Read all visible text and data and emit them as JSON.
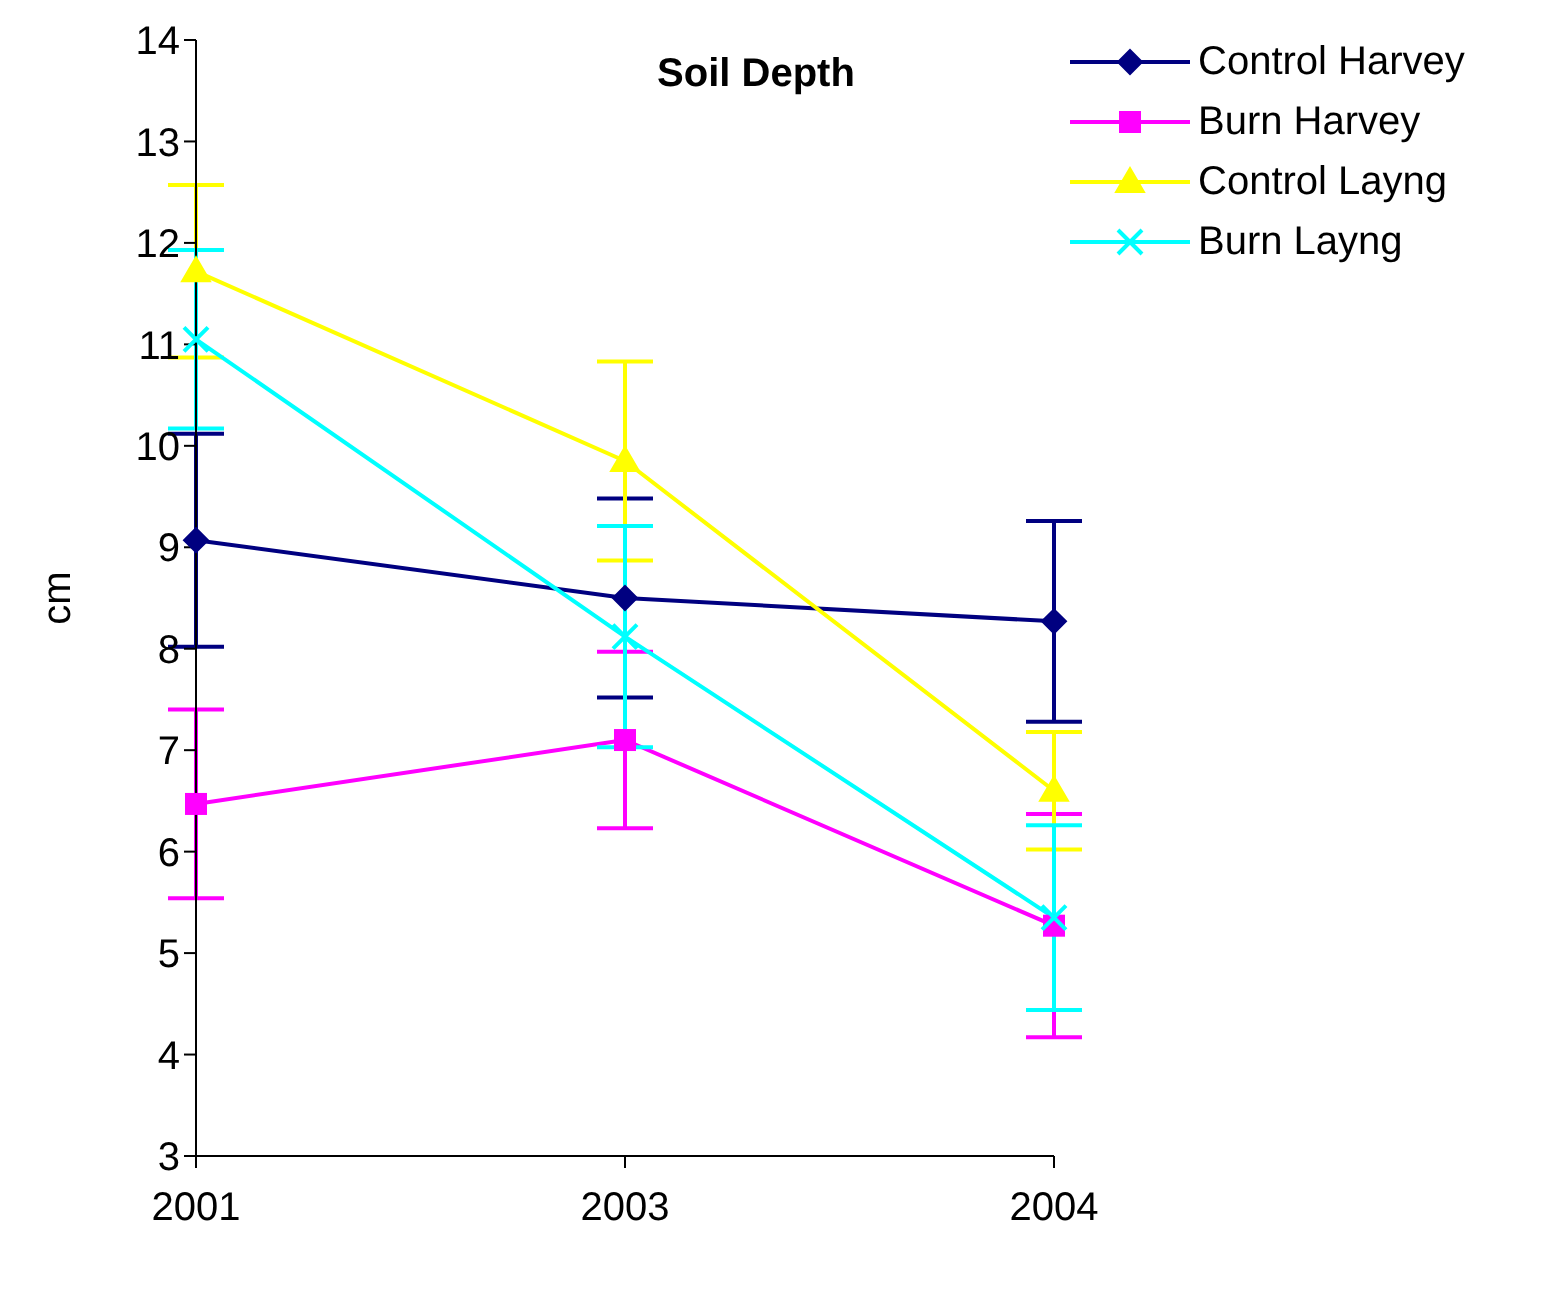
{
  "chart_data": {
    "type": "line",
    "title": "Soil Depth",
    "ylabel": "cm",
    "categories": [
      "2001",
      "2003",
      "2004"
    ],
    "series": [
      {
        "name": "Control Harvey",
        "color": "#000080",
        "marker": "diamond",
        "values": [
          9.07,
          8.5,
          8.27
        ],
        "errors": [
          1.05,
          0.98,
          0.99
        ]
      },
      {
        "name": "Burn Harvey",
        "color": "#ff00ff",
        "marker": "square",
        "values": [
          6.47,
          7.1,
          5.27
        ],
        "errors": [
          0.93,
          0.87,
          1.1
        ]
      },
      {
        "name": "Control Layng",
        "color": "#ffff00",
        "marker": "triangle",
        "values": [
          11.72,
          9.85,
          6.6
        ],
        "errors": [
          0.85,
          0.98,
          0.58
        ]
      },
      {
        "name": "Burn Layng",
        "color": "#00ffff",
        "marker": "cross",
        "values": [
          11.05,
          8.12,
          5.35
        ],
        "errors": [
          0.88,
          1.09,
          0.91
        ]
      }
    ],
    "ylim": [
      3,
      14
    ],
    "yticks": [
      3,
      4,
      5,
      6,
      7,
      8,
      9,
      10,
      11,
      12,
      13,
      14
    ],
    "grid": false,
    "legend": "top right"
  }
}
